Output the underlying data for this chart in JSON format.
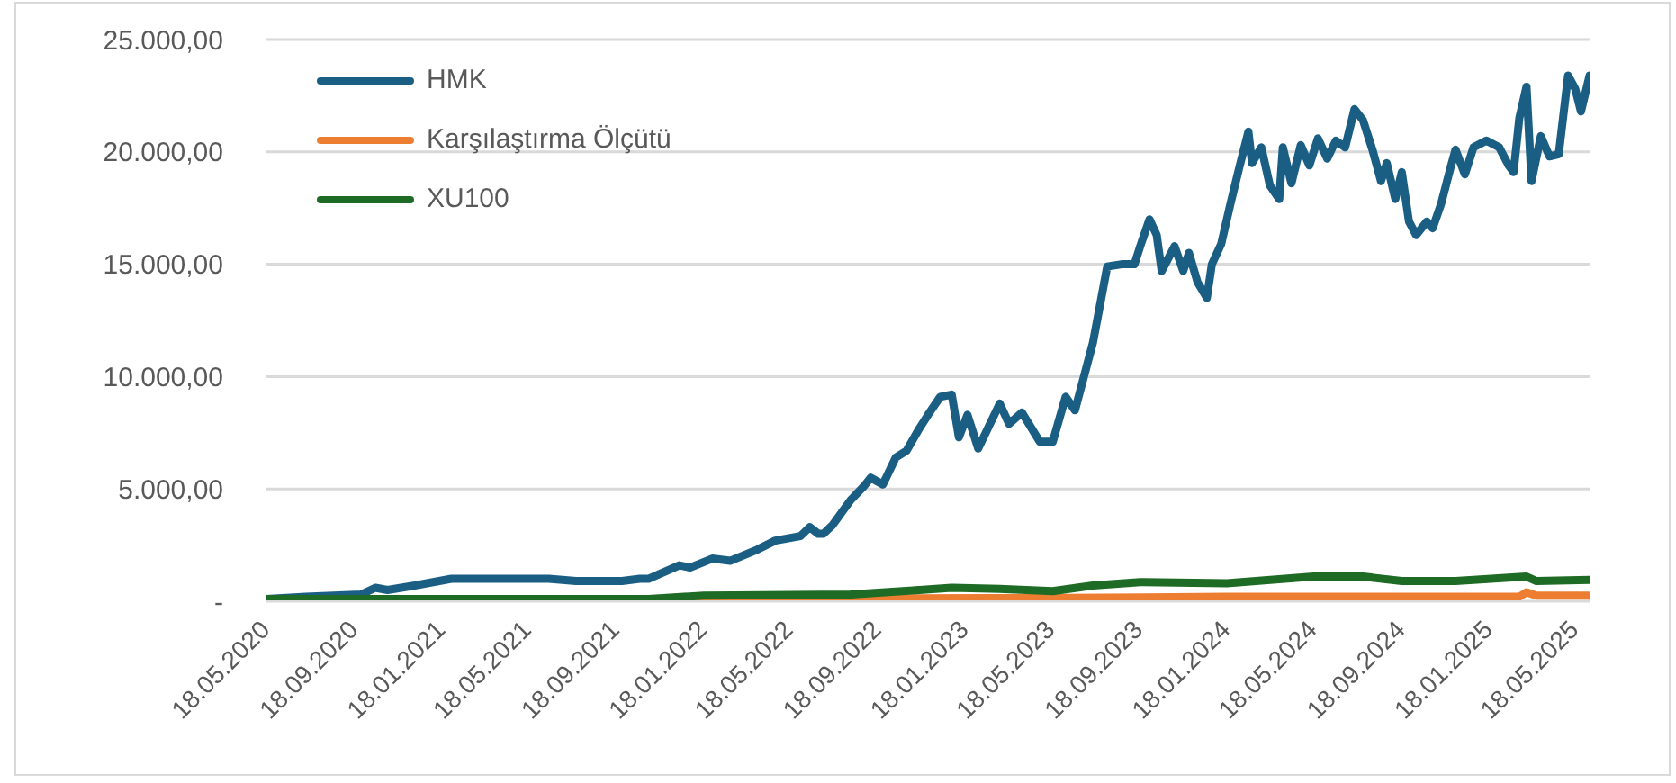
{
  "chart_data": {
    "type": "line",
    "xlim": [
      "2020-05-18",
      "2025-06-07"
    ],
    "xticks": [
      {
        "value": "2020-05-18",
        "label": "18.05.2020"
      },
      {
        "value": "2020-09-18",
        "label": "18.09.2020"
      },
      {
        "value": "2021-01-18",
        "label": "18.01.2021"
      },
      {
        "value": "2021-05-18",
        "label": "18.05.2021"
      },
      {
        "value": "2021-09-18",
        "label": "18.09.2021"
      },
      {
        "value": "2022-01-18",
        "label": "18.01.2022"
      },
      {
        "value": "2022-05-18",
        "label": "18.05.2022"
      },
      {
        "value": "2022-09-18",
        "label": "18.09.2022"
      },
      {
        "value": "2023-01-18",
        "label": "18.01.2023"
      },
      {
        "value": "2023-05-18",
        "label": "18.05.2023"
      },
      {
        "value": "2023-09-18",
        "label": "18.09.2023"
      },
      {
        "value": "2024-01-18",
        "label": "18.01.2024"
      },
      {
        "value": "2024-05-18",
        "label": "18.05.2024"
      },
      {
        "value": "2024-09-18",
        "label": "18.09.2024"
      },
      {
        "value": "2025-01-18",
        "label": "18.01.2025"
      },
      {
        "value": "2025-05-18",
        "label": "18.05.2025"
      }
    ],
    "ylim": [
      0,
      25000
    ],
    "yticks": [
      {
        "value": 0,
        "label": "-"
      },
      {
        "value": 5000,
        "label": "5.000,00"
      },
      {
        "value": 10000,
        "label": "10.000,00"
      },
      {
        "value": 15000,
        "label": "15.000,00"
      },
      {
        "value": 20000,
        "label": "20.000,00"
      },
      {
        "value": 25000,
        "label": "25.000,00"
      }
    ],
    "grid": "y",
    "legend": "top left",
    "marker": "none",
    "line_style": "solid",
    "series": [
      {
        "name": "HMK",
        "color": "#1a5e84",
        "x": [
          "2020-05-18",
          "2020-07-12",
          "2020-09-27",
          "2020-10-17",
          "2020-11-03",
          "2020-12-11",
          "2021-01-31",
          "2021-03-29",
          "2021-05-11",
          "2021-06-16",
          "2021-07-24",
          "2021-09-26",
          "2021-10-21",
          "2021-11-02",
          "2021-12-15",
          "2021-12-30",
          "2022-01-30",
          "2022-02-24",
          "2022-04-03",
          "2022-04-28",
          "2022-06-02",
          "2022-06-15",
          "2022-06-27",
          "2022-07-04",
          "2022-07-17",
          "2022-08-11",
          "2022-08-29",
          "2022-09-08",
          "2022-09-25",
          "2022-10-13",
          "2022-10-28",
          "2022-11-15",
          "2022-11-27",
          "2022-12-14",
          "2022-12-30",
          "2023-01-09",
          "2023-01-21",
          "2023-02-05",
          "2023-03-07",
          "2023-03-20",
          "2023-04-07",
          "2023-05-02",
          "2023-05-20",
          "2023-06-07",
          "2023-06-20",
          "2023-07-15",
          "2023-08-04",
          "2023-08-24",
          "2023-09-11",
          "2023-09-19",
          "2023-10-02",
          "2023-10-12",
          "2023-10-19",
          "2023-11-06",
          "2023-11-18",
          "2023-11-26",
          "2023-12-08",
          "2023-12-21",
          "2023-12-28",
          "2024-01-10",
          "2024-01-23",
          "2024-02-05",
          "2024-02-17",
          "2024-02-22",
          "2024-03-06",
          "2024-03-18",
          "2024-03-31",
          "2024-04-05",
          "2024-04-17",
          "2024-04-30",
          "2024-05-12",
          "2024-05-24",
          "2024-06-06",
          "2024-06-18",
          "2024-07-01",
          "2024-07-14",
          "2024-07-26",
          "2024-08-08",
          "2024-08-20",
          "2024-08-28",
          "2024-09-09",
          "2024-09-18",
          "2024-09-28",
          "2024-10-08",
          "2024-10-23",
          "2024-10-31",
          "2024-11-12",
          "2024-11-25",
          "2024-12-02",
          "2024-12-15",
          "2024-12-27",
          "2025-01-14",
          "2025-02-01",
          "2025-02-14",
          "2025-02-21",
          "2025-03-01",
          "2025-03-11",
          "2025-03-18",
          "2025-03-31",
          "2025-04-12",
          "2025-04-25",
          "2025-05-08",
          "2025-05-18",
          "2025-05-26",
          "2025-06-07"
        ],
        "values": [
          100,
          200,
          300,
          600,
          500,
          700,
          1000,
          1000,
          1000,
          1000,
          900,
          900,
          1000,
          1000,
          1600,
          1500,
          1900,
          1800,
          2300,
          2700,
          2900,
          3300,
          3000,
          3000,
          3400,
          4500,
          5100,
          5500,
          5200,
          6400,
          6700,
          7700,
          8300,
          9100,
          9200,
          7300,
          8300,
          6800,
          8800,
          7900,
          8400,
          7100,
          7100,
          9100,
          8500,
          11500,
          14900,
          15000,
          15000,
          15800,
          17000,
          16300,
          14700,
          15800,
          14700,
          15500,
          14200,
          13500,
          15000,
          15900,
          17700,
          19400,
          20900,
          19500,
          20200,
          18500,
          17900,
          20200,
          18600,
          20300,
          19400,
          20600,
          19700,
          20500,
          20200,
          21900,
          21400,
          20100,
          18700,
          19500,
          17900,
          19100,
          16900,
          16300,
          16900,
          16600,
          17700,
          19300,
          20100,
          19000,
          20200,
          20500,
          20200,
          19400,
          19100,
          21500,
          22900,
          18700,
          20700,
          19800,
          19900,
          23400,
          22800,
          21800,
          23400
        ]
      },
      {
        "name": "Karşılaştırma Ölçütü",
        "color": "#ed7d31",
        "x": [
          "2020-05-18",
          "2022-01-18",
          "2023-06-07",
          "2024-01-18",
          "2025-03-01",
          "2025-03-11",
          "2025-03-25",
          "2025-06-07"
        ],
        "values": [
          100,
          100,
          150,
          200,
          200,
          400,
          250,
          250
        ]
      },
      {
        "name": "XU100",
        "color": "#1e6b25",
        "x": [
          "2020-05-18",
          "2021-11-02",
          "2022-01-18",
          "2022-08-11",
          "2022-11-15",
          "2022-12-30",
          "2023-03-07",
          "2023-05-20",
          "2023-07-15",
          "2023-09-19",
          "2024-01-18",
          "2024-05-18",
          "2024-07-26",
          "2024-09-18",
          "2024-12-02",
          "2025-03-11",
          "2025-03-25",
          "2025-06-07"
        ],
        "values": [
          100,
          100,
          250,
          300,
          500,
          600,
          550,
          450,
          700,
          850,
          800,
          1100,
          1100,
          900,
          900,
          1100,
          900,
          950
        ]
      }
    ]
  }
}
